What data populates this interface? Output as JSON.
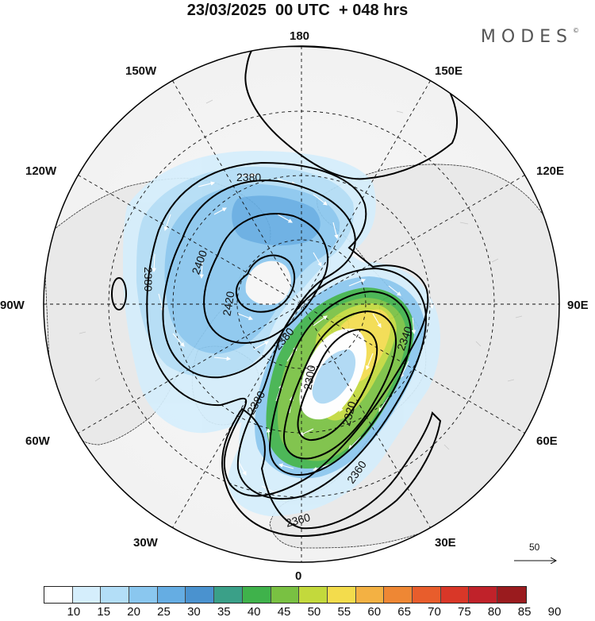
{
  "title": "23/03/2025  00 UTC  + 048 hrs",
  "brand": "MODES",
  "brand_mark": "©",
  "longitude_labels": {
    "top": "180",
    "bottom": "0",
    "left": "90W",
    "right": "90E",
    "top_left": "150W",
    "top_right": "150E",
    "upper_left": "120W",
    "upper_right": "120E",
    "lower_left": "60W",
    "lower_right": "60E",
    "bottom_left": "30W",
    "bottom_right": "30E"
  },
  "contour_labels": [
    "2380",
    "2400",
    "2420",
    "2380",
    "2380",
    "2380",
    "2340",
    "2300",
    "2320",
    "2360",
    "2360",
    "2380"
  ],
  "colorbar": {
    "ticks": [
      "10",
      "15",
      "20",
      "25",
      "30",
      "35",
      "40",
      "45",
      "50",
      "55",
      "60",
      "65",
      "70",
      "75",
      "80",
      "85",
      "90"
    ],
    "colors": [
      "#ffffff",
      "#d5eefc",
      "#b3def7",
      "#8ac7ef",
      "#65ade3",
      "#4a92cf",
      "#3aa088",
      "#3fb24b",
      "#79c142",
      "#c3d93c",
      "#f3dc4c",
      "#f3b143",
      "#ee8734",
      "#e85d2c",
      "#d93728",
      "#c0222a",
      "#9a1b1e"
    ]
  },
  "reference_vector": "50"
}
